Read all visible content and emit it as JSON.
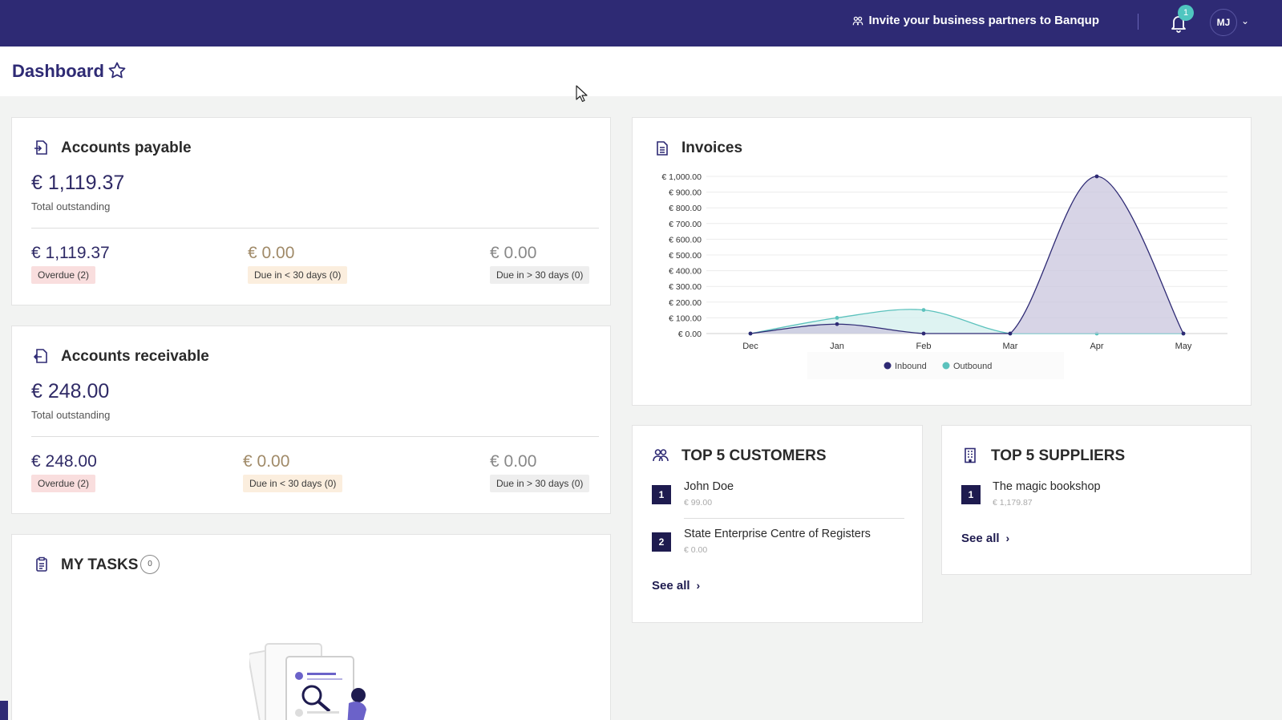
{
  "topbar": {
    "invite_label": "Invite your business partners to Banqup",
    "notification_count": "1",
    "user_initials": "MJ"
  },
  "page": {
    "title": "Dashboard"
  },
  "accounts_payable": {
    "title": "Accounts payable",
    "total": "€ 1,119.37",
    "total_label": "Total outstanding",
    "overdue_amount": "€ 1,119.37",
    "overdue_label": "Overdue (2)",
    "due_lt30_amount": "€ 0.00",
    "due_lt30_label": "Due in < 30 days (0)",
    "due_gt30_amount": "€ 0.00",
    "due_gt30_label": "Due in > 30 days (0)"
  },
  "accounts_receivable": {
    "title": "Accounts receivable",
    "total": "€ 248.00",
    "total_label": "Total outstanding",
    "overdue_amount": "€ 248.00",
    "overdue_label": "Overdue (2)",
    "due_lt30_amount": "€ 0.00",
    "due_lt30_label": "Due in < 30 days (0)",
    "due_gt30_amount": "€ 0.00",
    "due_gt30_label": "Due in > 30 days (0)"
  },
  "tasks": {
    "title": "MY TASKS",
    "count": "0"
  },
  "customers": {
    "title": "TOP 5 CUSTOMERS",
    "items": [
      {
        "rank": "1",
        "name": "John Doe",
        "amount": "€ 99.00"
      },
      {
        "rank": "2",
        "name": "State Enterprise Centre of Registers",
        "amount": "€ 0.00"
      }
    ],
    "see_all": "See all"
  },
  "suppliers": {
    "title": "TOP 5 SUPPLIERS",
    "items": [
      {
        "rank": "1",
        "name": "The magic bookshop",
        "amount": "€ 1,179.87"
      }
    ],
    "see_all": "See all"
  },
  "chart_data": {
    "type": "area",
    "title": "Invoices",
    "categories": [
      "Dec",
      "Jan",
      "Feb",
      "Mar",
      "Apr",
      "May"
    ],
    "ylim": [
      0,
      1000
    ],
    "yticks": [
      0,
      100,
      200,
      300,
      400,
      500,
      600,
      700,
      800,
      900,
      1000
    ],
    "ytick_labels": [
      "€ 0.00",
      "€ 100.00",
      "€ 200.00",
      "€ 300.00",
      "€ 400.00",
      "€ 500.00",
      "€ 600.00",
      "€ 700.00",
      "€ 800.00",
      "€ 900.00",
      "€ 1,000.00"
    ],
    "series": [
      {
        "name": "Inbound",
        "color": "#2e2a74",
        "fill": "#c9c6de",
        "values": [
          0,
          60,
          0,
          0,
          1000,
          0
        ]
      },
      {
        "name": "Outbound",
        "color": "#5cc2bd",
        "fill": "#d3efed",
        "values": [
          0,
          100,
          150,
          0,
          0,
          0
        ]
      }
    ],
    "legend": "bottom"
  }
}
